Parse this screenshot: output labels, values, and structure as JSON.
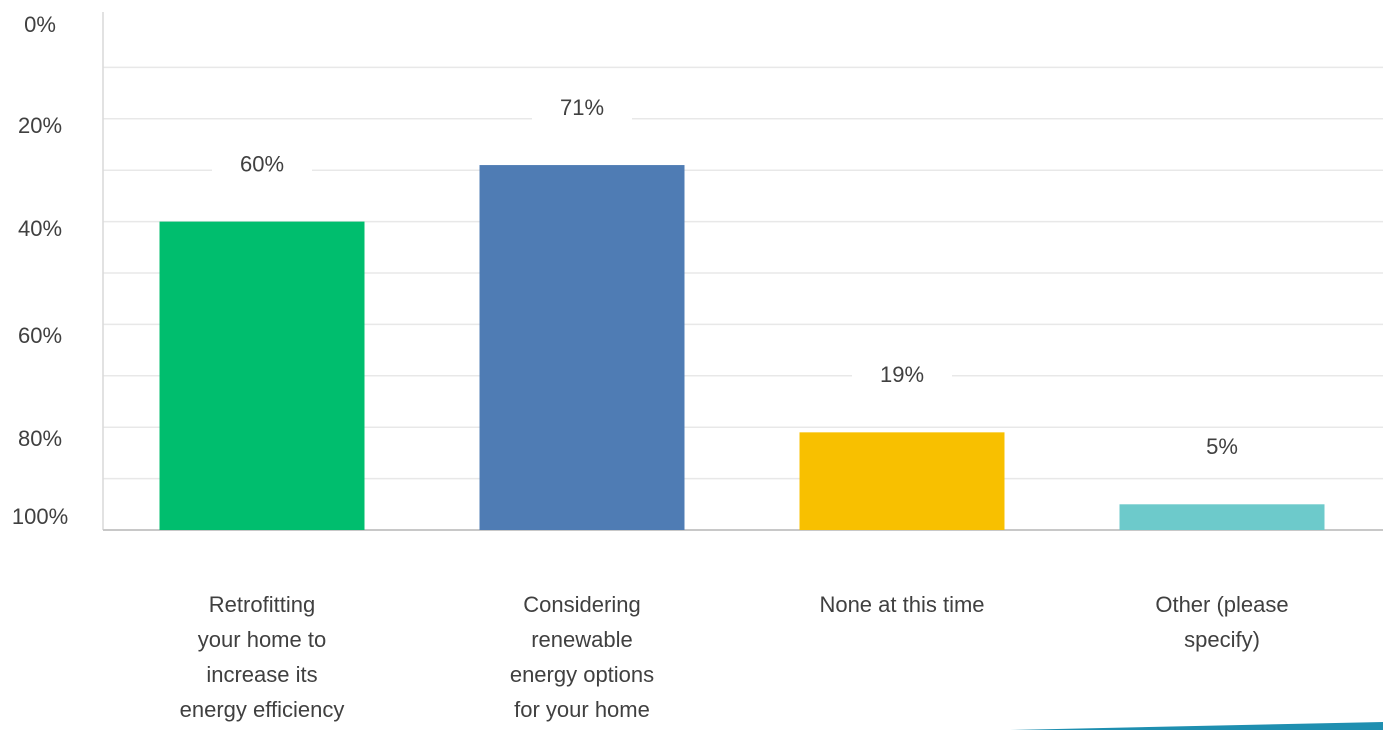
{
  "chart_data": {
    "type": "bar",
    "categories": [
      [
        "Retrofitting",
        "your home to",
        "increase its",
        "energy efficiency"
      ],
      [
        "Considering",
        "renewable",
        "energy options",
        "for your home"
      ],
      [
        "None at this time"
      ],
      [
        "Other (please",
        "specify)"
      ]
    ],
    "values": [
      60,
      71,
      19,
      5
    ],
    "value_labels": [
      "60%",
      "71%",
      "19%",
      "5%"
    ],
    "colors": [
      "#00be6e",
      "#4f7cb4",
      "#f8c000",
      "#6dcacb"
    ],
    "ylim": [
      0,
      100
    ],
    "y_ticks": [
      0,
      20,
      40,
      60,
      80,
      100
    ],
    "y_tick_labels": [
      "0%",
      "20%",
      "40%",
      "60%",
      "80%",
      "100%"
    ],
    "grid": true,
    "title": "",
    "xlabel": "",
    "ylabel": ""
  }
}
